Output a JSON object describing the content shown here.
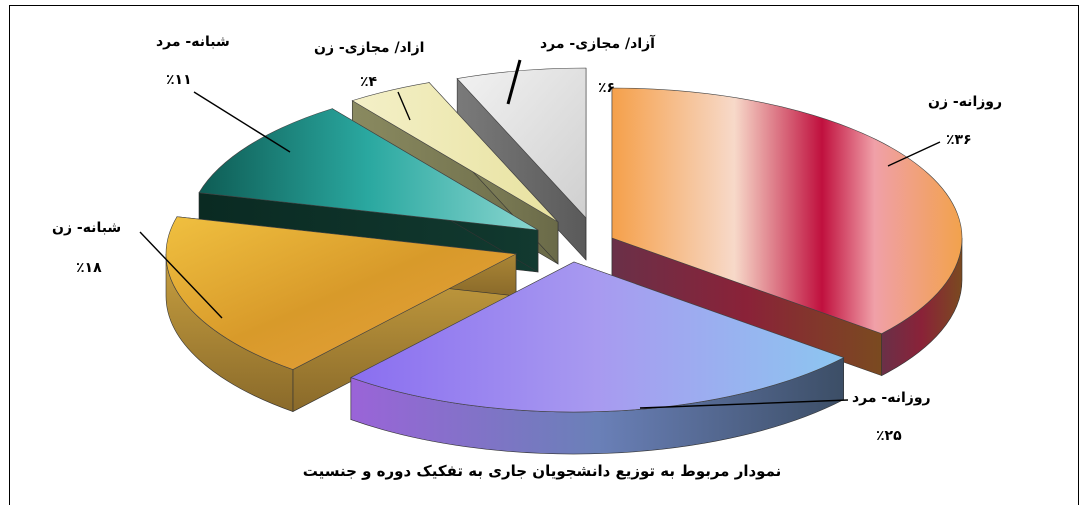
{
  "chart_data": {
    "type": "pie",
    "style": "3d-exploded",
    "title": "نمودار مربوط به توزیع دانشجویان جاری به تفکیک دوره و جنسیت",
    "slices": [
      {
        "label": "روزانه- زن",
        "value": 36,
        "value_label": "٪۳۶",
        "color": "#f0a64e"
      },
      {
        "label": "روزانه- مرد",
        "value": 25,
        "value_label": "٪۲۵",
        "color": "#9a86e8"
      },
      {
        "label": "شبانه- زن",
        "value": 18,
        "value_label": "٪۱۸",
        "color": "#e6b23a"
      },
      {
        "label": "شبانه- مرد",
        "value": 11,
        "value_label": "٪۱۱",
        "color": "#1f8a86"
      },
      {
        "label": "ازاد/ مجازی- زن",
        "value": 4,
        "value_label": "٪۴",
        "color": "#f2ecc0"
      },
      {
        "label": "آزاد/ مجازی- مرد",
        "value": 6,
        "value_label": "٪۶",
        "color": "#dcdcdc"
      }
    ]
  }
}
